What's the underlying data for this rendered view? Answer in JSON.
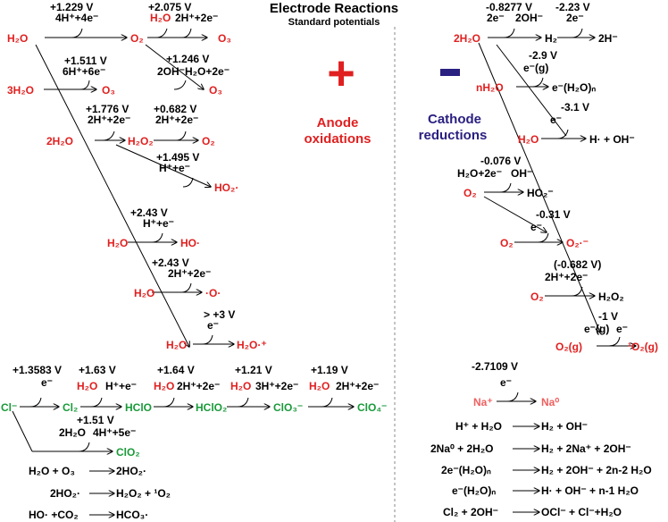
{
  "header": {
    "title": "Electrode Reactions",
    "subtitle": "Standard potentials"
  },
  "anode": {
    "sign": "+",
    "label_line1": "Anode",
    "label_line2": "oxidations",
    "sign_color": "#e02020",
    "label_color": "#e02020"
  },
  "cathode": {
    "sign": "−",
    "label_line1": "Cathode",
    "label_line2": "reductions",
    "sign_color": "#2a2080",
    "label_color": "#2a2080"
  },
  "colors": {
    "oxygen": "#e02020",
    "chlorine": "#1a9a3a",
    "sodium": "#f06060",
    "text": "#000000"
  },
  "anode_reactions": {
    "r1": {
      "reactant": "H₂O",
      "potential": "+1.229 V",
      "reagents": "4H⁺+4e⁻",
      "product": "O₂"
    },
    "r2": {
      "reactant": "O₂",
      "potential": "+2.075 V",
      "reagents_in": "H₂O",
      "reagents_out": "2H⁺+2e⁻",
      "product": "O₃"
    },
    "r3": {
      "reactant": "3H₂O",
      "potential": "+1.511 V",
      "reagents": "6H⁺+6e⁻",
      "product": "O₃"
    },
    "r4": {
      "potential": "+1.246 V",
      "reagents_in": "2OH⁻",
      "reagents_out": "H₂O+2e⁻",
      "product": "O₃"
    },
    "r5": {
      "reactant": "2H₂O",
      "potential": "+1.776 V",
      "reagents": "2H⁺+2e⁻",
      "product": "H₂O₂"
    },
    "r6": {
      "potential": "+0.682 V",
      "reagents": "2H⁺+2e⁻",
      "product": "O₂"
    },
    "r7": {
      "potential": "+1.495 V",
      "reagents": "H⁺+e⁻",
      "product": "HO₂·"
    },
    "r8": {
      "reactant": "H₂O",
      "potential": "+2.43 V",
      "reagents": "H⁺+e⁻",
      "product": "HO·"
    },
    "r9": {
      "reactant": "H₂O",
      "potential": "+2.43 V",
      "reagents": "2H⁺+2e⁻",
      "product": "·O·"
    },
    "r10": {
      "reactant": "H₂O",
      "potential": "> +3 V",
      "reagents": "e⁻",
      "product": "H₂O·⁺"
    }
  },
  "chlorine_chain": {
    "start": "Cl⁻",
    "s1": {
      "potential": "+1.3583 V",
      "reagents": "e⁻",
      "product": "Cl₂"
    },
    "s2": {
      "potential": "+1.63 V",
      "reagents_in": "H₂O",
      "reagents_out": "H⁺+e⁻",
      "product": "HClO"
    },
    "s3": {
      "potential": "+1.64 V",
      "reagents_in": "H₂O",
      "reagents_out": "2H⁺+2e⁻",
      "product": "HClO₂"
    },
    "s4": {
      "potential": "+1.21 V",
      "reagents_in": "H₂O",
      "reagents_out": "3H⁺+2e⁻",
      "product": "ClO₃⁻"
    },
    "s5": {
      "potential": "+1.19 V",
      "reagents_in": "H₂O",
      "reagents_out": "2H⁺+2e⁻",
      "product": "ClO₄⁻"
    },
    "s6": {
      "potential": "+1.51 V",
      "reagents_in": "2H₂O",
      "reagents_out": "4H⁺+5e⁻",
      "product": "ClO₂"
    }
  },
  "anode_secondary": [
    {
      "left": "H₂O + O₃",
      "right": "2HO₂·"
    },
    {
      "left": "2HO₂·",
      "right": "H₂O₂ + ¹O₂"
    },
    {
      "left": "HO· +CO₂",
      "right": "HCO₃·"
    }
  ],
  "cathode_reactions": {
    "c1": {
      "reactant": "2H₂O",
      "potential": "-0.8277 V",
      "reagents_in": "2e⁻",
      "reagents_out": "2OH⁻",
      "product": "H₂"
    },
    "c2": {
      "potential": "-2.23 V",
      "reagents": "2e⁻",
      "product": "2H⁻"
    },
    "c3": {
      "reactant": "nH₂O",
      "potential": "-2.9 V",
      "reagents": "e⁻(g)",
      "product": "e⁻(H₂O)ₙ"
    },
    "c4": {
      "reactant": "H₂O",
      "potential": "-3.1 V",
      "reagents": "e⁻",
      "product": "H· + OH⁻"
    },
    "c5": {
      "reactant": "O₂",
      "potential": "-0.076 V",
      "reagents_in": "H₂O+2e⁻",
      "reagents_out": "OH⁻",
      "product": "HO₂⁻"
    },
    "c6": {
      "reactant": "O₂",
      "potential": "-0.31 V",
      "reagents": "e⁻",
      "product": "O₂·⁻"
    },
    "c7": {
      "reactant": "O₂",
      "potential": "(-0.682 V)",
      "reagents": "2H⁺+2e⁻",
      "product": "H₂O₂"
    },
    "c8": {
      "reactant": "O₂(g)",
      "potential": "-1 V",
      "reagents_in": "e⁻(g)",
      "reagents_out": "e⁻",
      "product": "¹O₂(g)"
    },
    "c9": {
      "reactant": "Na⁺",
      "potential": "-2.7109 V",
      "reagents": "e⁻",
      "product": "Na⁰"
    }
  },
  "cathode_secondary": [
    {
      "left": "H⁺ + H₂O",
      "right": "H₂ + OH⁻"
    },
    {
      "left": "2Na⁰ + 2H₂O",
      "right": "H₂ + 2Na⁺ + 2OH⁻"
    },
    {
      "left": "2e⁻(H₂O)ₙ",
      "right": "H₂ + 2OH⁻ + 2n-2 H₂O"
    },
    {
      "left": "e⁻(H₂O)ₙ",
      "right": "H· + OH⁻ + n-1 H₂O"
    },
    {
      "left": "Cl₂ + 2OH⁻",
      "right": "OCl⁻ + Cl⁻+H₂O"
    }
  ]
}
